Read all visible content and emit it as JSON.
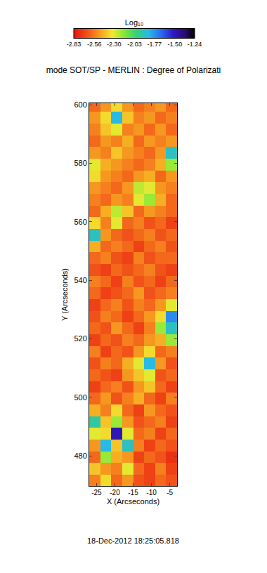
{
  "chart_data": {
    "type": "heatmap",
    "title": "mode SOT/SP - MERLIN : Degree of Polarizati",
    "x_label": "X (Arcseconds)",
    "y_label": "Y (Arcseconds)",
    "annotations": [
      "18-Dec-2012 18:25:05.818"
    ],
    "xlim": [
      -27,
      -3
    ],
    "xticks": [
      -25,
      -20,
      -15,
      -10,
      -5
    ],
    "ylim": [
      469.7,
      600.5
    ],
    "yticks": [
      480,
      500,
      520,
      540,
      560,
      580,
      600
    ],
    "x": [
      -25.5,
      -22.5,
      -19.5,
      -16.5,
      -13.5,
      -10.5,
      -7.5,
      -4.5
    ],
    "y": [
      471.5,
      475.5,
      479.5,
      483.5,
      487.5,
      491.5,
      495.5,
      499.5,
      503.5,
      507.5,
      511.5,
      515.5,
      519.5,
      523.5,
      527.5,
      531.5,
      535.5,
      539.5,
      543.5,
      547.5,
      551.5,
      555.5,
      559.5,
      563.5,
      567.5,
      571.5,
      575.5,
      579.5,
      583.5,
      587.5,
      591.5,
      595.5,
      599.5
    ],
    "cells": [
      [
        -2.55,
        -2.35,
        -2.6,
        -2.5,
        -2.65,
        -2.7,
        -2.6,
        -2.65
      ],
      [
        -2.4,
        -2.5,
        -2.55,
        -2.3,
        -2.6,
        -2.7,
        -2.55,
        -2.7
      ],
      [
        -2.6,
        -2.2,
        -2.45,
        -2.5,
        -2.7,
        -2.6,
        -2.65,
        -2.75
      ],
      [
        -2.5,
        -1.85,
        -2.4,
        -1.9,
        -2.55,
        -2.7,
        -2.6,
        -2.65
      ],
      [
        -2.3,
        -2.35,
        -1.5,
        -2.3,
        -2.6,
        -2.55,
        -2.7,
        -2.6
      ],
      [
        -1.95,
        -2.4,
        -2.2,
        -2.5,
        -2.65,
        -2.6,
        -2.55,
        -2.7
      ],
      [
        -2.45,
        -2.55,
        -2.35,
        -2.6,
        -2.7,
        -2.5,
        -2.6,
        -2.65
      ],
      [
        -2.6,
        -2.5,
        -2.65,
        -2.55,
        -2.45,
        -2.6,
        -2.7,
        -2.55
      ],
      [
        -2.7,
        -2.6,
        -2.55,
        -2.65,
        -2.5,
        -2.4,
        -2.6,
        -2.7
      ],
      [
        -2.6,
        -2.65,
        -2.7,
        -2.5,
        -2.4,
        -2.3,
        -2.65,
        -2.6
      ],
      [
        -2.65,
        -2.55,
        -2.6,
        -2.45,
        -2.3,
        -1.85,
        -2.5,
        -2.65
      ],
      [
        -2.55,
        -2.7,
        -2.6,
        -2.65,
        -2.5,
        -2.35,
        -2.6,
        -2.55
      ],
      [
        -2.7,
        -2.6,
        -2.65,
        -2.55,
        -2.6,
        -2.5,
        -2.45,
        -2.2
      ],
      [
        -2.6,
        -2.65,
        -2.5,
        -2.6,
        -2.7,
        -2.55,
        -2.2,
        -1.9
      ],
      [
        -2.65,
        -2.55,
        -2.6,
        -2.7,
        -2.6,
        -2.5,
        -2.35,
        -1.75
      ],
      [
        -2.7,
        -2.6,
        -2.55,
        -2.65,
        -2.55,
        -2.6,
        -2.5,
        -2.3
      ],
      [
        -2.6,
        -2.7,
        -2.65,
        -2.6,
        -2.5,
        -2.65,
        -2.6,
        -2.55
      ],
      [
        -2.55,
        -2.6,
        -2.7,
        -2.55,
        -2.65,
        -2.6,
        -2.7,
        -2.6
      ],
      [
        -2.65,
        -2.7,
        -2.6,
        -2.65,
        -2.6,
        -2.55,
        -2.65,
        -2.7
      ],
      [
        -2.6,
        -2.55,
        -2.65,
        -2.7,
        -2.55,
        -2.65,
        -2.6,
        -2.6
      ],
      [
        -2.45,
        -2.6,
        -2.55,
        -2.6,
        -2.7,
        -2.6,
        -2.55,
        -2.65
      ],
      [
        -1.9,
        -2.5,
        -2.6,
        -2.65,
        -2.6,
        -2.55,
        -2.65,
        -2.6
      ],
      [
        -2.35,
        -2.55,
        -2.3,
        -2.6,
        -2.55,
        -2.65,
        -2.6,
        -2.7
      ],
      [
        -2.6,
        -2.45,
        -2.25,
        -2.4,
        -2.6,
        -2.5,
        -2.55,
        -2.6
      ],
      [
        -2.55,
        -2.6,
        -2.5,
        -2.55,
        -2.3,
        -2.2,
        -2.45,
        -2.6
      ],
      [
        -2.5,
        -2.55,
        -2.6,
        -2.5,
        -2.25,
        -2.3,
        -2.5,
        -2.55
      ],
      [
        -2.35,
        -2.5,
        -2.55,
        -2.6,
        -2.5,
        -2.45,
        -2.6,
        -2.5
      ],
      [
        -2.3,
        -2.45,
        -2.5,
        -2.55,
        -2.6,
        -2.55,
        -2.45,
        -2.2
      ],
      [
        -2.5,
        -2.55,
        -2.4,
        -2.5,
        -2.55,
        -2.6,
        -2.5,
        -1.9
      ],
      [
        -2.6,
        -2.5,
        -2.55,
        -2.45,
        -2.6,
        -2.5,
        -2.55,
        -2.5
      ],
      [
        -2.55,
        -2.4,
        -2.3,
        -2.55,
        -2.5,
        -2.6,
        -2.5,
        -2.6
      ],
      [
        -2.5,
        -2.35,
        -1.85,
        -2.4,
        -2.55,
        -2.5,
        -2.6,
        -2.55
      ],
      [
        -2.6,
        -2.5,
        -2.35,
        -2.5,
        -2.6,
        -2.55,
        -2.5,
        -2.6
      ]
    ],
    "colorbar": {
      "title": "Log₁₀",
      "range": [
        -2.83,
        -1.24
      ],
      "ticks": [
        -2.83,
        -2.56,
        {
          "value": -2.3,
          "label": "-2.30"
        },
        -2.03,
        -1.77,
        {
          "value": -1.5,
          "label": "-1.50"
        },
        -1.24
      ]
    }
  }
}
